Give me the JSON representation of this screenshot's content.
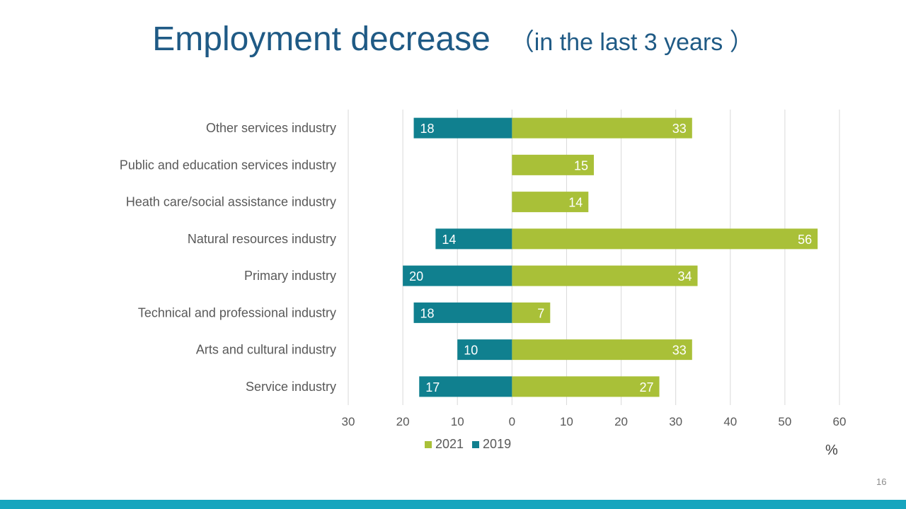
{
  "slide": {
    "title": "Employment decrease",
    "subtitle": "（in the last 3 years ）",
    "unit": "%",
    "page_number": "16",
    "footer_color": "#17a5be"
  },
  "chart_data": {
    "type": "bar",
    "orientation": "horizontal",
    "categories": [
      "Other services industry",
      "Public and education services industry",
      "Heath care/social assistance industry",
      "Natural resources industry",
      "Primary industry",
      "Technical and professional industry",
      "Arts and cultural industry",
      "Service industry"
    ],
    "series": [
      {
        "name": "2021",
        "color": "#a9c038",
        "direction": "positive",
        "values": [
          33,
          15,
          14,
          56,
          34,
          7,
          33,
          27
        ]
      },
      {
        "name": "2019",
        "color": "#10808f",
        "direction": "negative",
        "values": [
          18,
          null,
          null,
          14,
          20,
          18,
          10,
          17
        ]
      }
    ],
    "xlim": [
      -30,
      60
    ],
    "xticks": [
      {
        "value": -30,
        "label": "30"
      },
      {
        "value": -20,
        "label": "20"
      },
      {
        "value": -10,
        "label": "10"
      },
      {
        "value": 0,
        "label": "0"
      },
      {
        "value": 10,
        "label": "10"
      },
      {
        "value": 20,
        "label": "20"
      },
      {
        "value": 30,
        "label": "30"
      },
      {
        "value": 40,
        "label": "40"
      },
      {
        "value": 50,
        "label": "50"
      },
      {
        "value": 60,
        "label": "60"
      }
    ],
    "grid": true,
    "legend_position": "bottom"
  }
}
